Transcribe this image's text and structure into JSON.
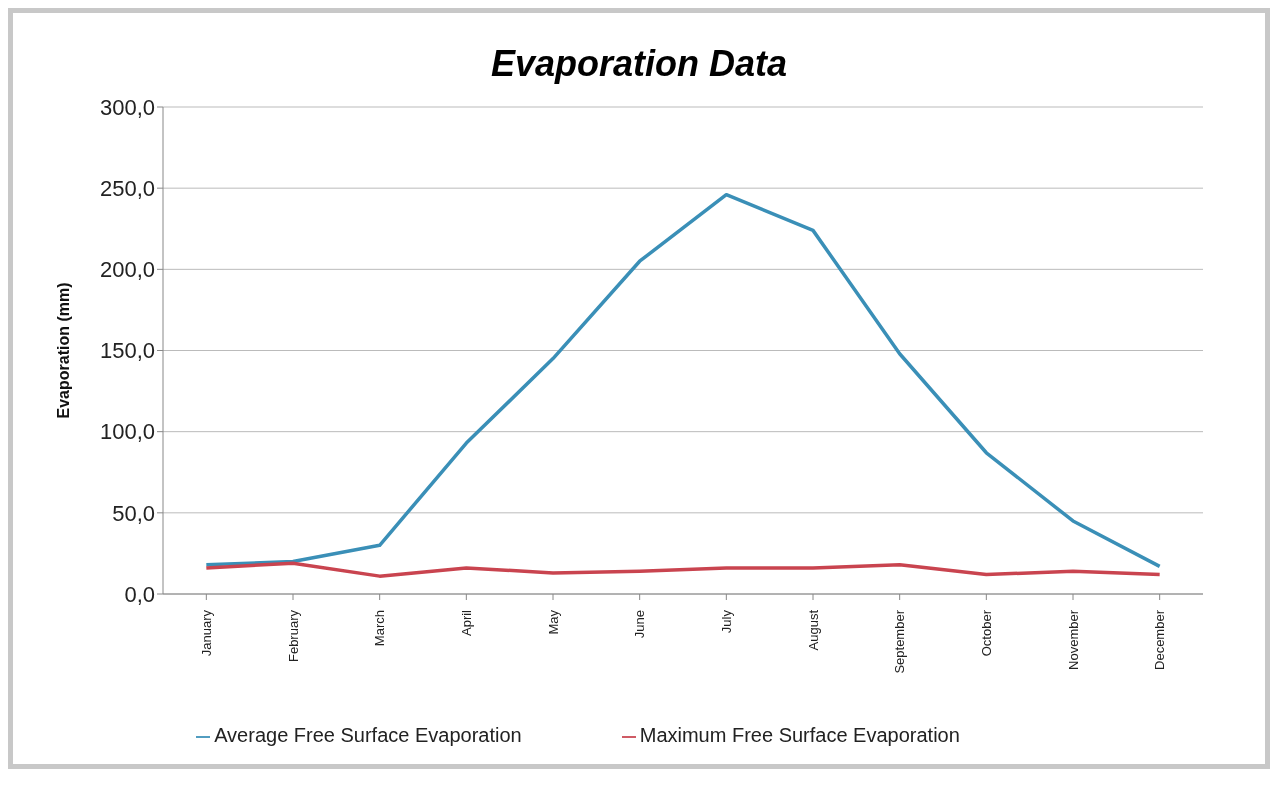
{
  "chart_data": {
    "type": "line",
    "title": "Evaporation Data",
    "ylabel": "Evaporation (mm)",
    "categories": [
      "January",
      "February",
      "March",
      "April",
      "May",
      "June",
      "July",
      "August",
      "September",
      "October",
      "November",
      "December"
    ],
    "series": [
      {
        "name": "Average Free Surface Evaporation",
        "color": "#3a8fb7",
        "values": [
          18,
          20,
          30,
          93,
          145,
          205,
          246,
          224,
          148,
          87,
          45,
          17
        ]
      },
      {
        "name": "Maximum Free Surface Evaporation",
        "color": "#c9444f",
        "values": [
          16,
          19,
          11,
          16,
          13,
          14,
          16,
          16,
          18,
          12,
          14,
          12
        ]
      }
    ],
    "ylim": [
      0,
      300
    ],
    "yticks": [
      {
        "value": 0,
        "label": "0,0"
      },
      {
        "value": 50,
        "label": "50,0"
      },
      {
        "value": 100,
        "label": "100,0"
      },
      {
        "value": 150,
        "label": "150,0"
      },
      {
        "value": 200,
        "label": "200,0"
      },
      {
        "value": 250,
        "label": "250,0"
      },
      {
        "value": 300,
        "label": "300,0"
      }
    ],
    "grid": "y",
    "legend": "bottom",
    "marker": "none",
    "line_style": "solid"
  }
}
